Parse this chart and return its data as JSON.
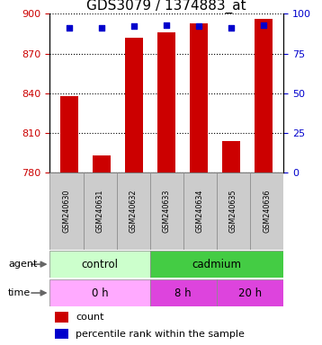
{
  "title": "GDS3079 / 1374883_at",
  "samples": [
    "GSM240630",
    "GSM240631",
    "GSM240632",
    "GSM240633",
    "GSM240634",
    "GSM240635",
    "GSM240636"
  ],
  "count_values": [
    838,
    793,
    882,
    886,
    893,
    804,
    896
  ],
  "percentile_values": [
    91,
    91,
    92,
    93,
    92,
    91,
    93
  ],
  "ylim_left": [
    780,
    900
  ],
  "ylim_right": [
    0,
    100
  ],
  "yticks_left": [
    780,
    810,
    840,
    870,
    900
  ],
  "yticks_right": [
    0,
    25,
    50,
    75,
    100
  ],
  "bar_color": "#cc0000",
  "dot_color": "#0000cc",
  "bar_width": 0.55,
  "agent_groups": [
    {
      "label": "control",
      "start": 0,
      "end": 3,
      "color": "#ccffcc"
    },
    {
      "label": "cadmium",
      "start": 3,
      "end": 7,
      "color": "#44cc44"
    }
  ],
  "time_colors": [
    "#ffaaff",
    "#dd44dd",
    "#dd44dd"
  ],
  "time_groups": [
    {
      "label": "0 h",
      "start": 0,
      "end": 3
    },
    {
      "label": "8 h",
      "start": 3,
      "end": 5
    },
    {
      "label": "20 h",
      "start": 5,
      "end": 7
    }
  ],
  "sample_bg_color": "#cccccc",
  "legend_count_color": "#cc0000",
  "legend_percentile_color": "#0000cc",
  "title_fontsize": 11,
  "tick_fontsize": 8,
  "axis_label_color_left": "#cc0000",
  "axis_label_color_right": "#0000cc"
}
